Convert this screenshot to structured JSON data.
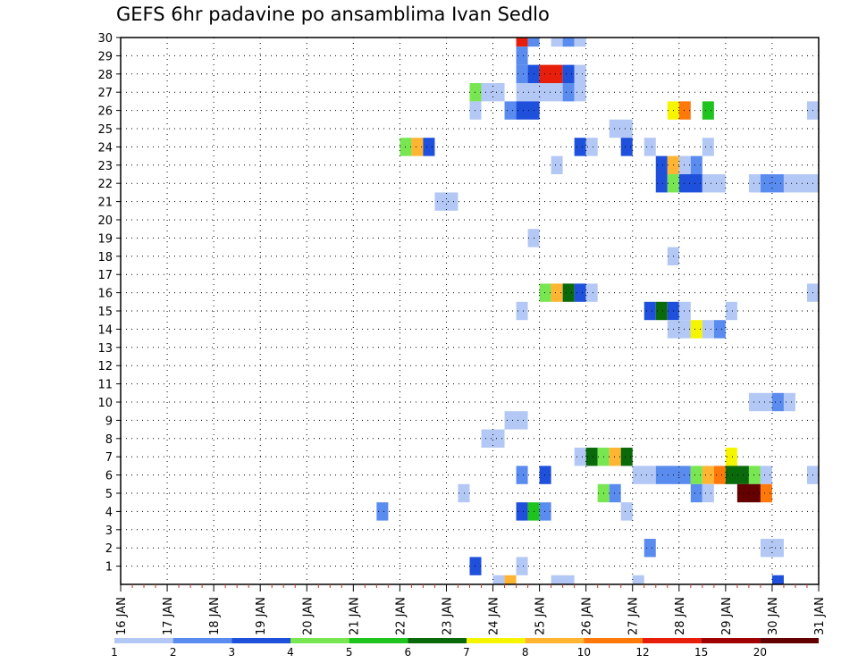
{
  "chart_data": {
    "type": "heatmap",
    "title": "GEFS 6hr padavine po ansamblima Ivan Sedlo",
    "xlabel": "",
    "ylabel": "",
    "x_tick_labels": [
      "16 JAN",
      "17 JAN",
      "18 JAN",
      "19 JAN",
      "20 JAN",
      "21 JAN",
      "22 JAN",
      "23 JAN",
      "24 JAN",
      "25 JAN",
      "26 JAN",
      "27 JAN",
      "28 JAN",
      "29 JAN",
      "30 JAN",
      "31 JAN"
    ],
    "y_tick_labels": [
      "1",
      "2",
      "3",
      "4",
      "5",
      "6",
      "7",
      "8",
      "9",
      "10",
      "11",
      "12",
      "13",
      "14",
      "15",
      "16",
      "17",
      "18",
      "19",
      "20",
      "21",
      "22",
      "23",
      "24",
      "25",
      "26",
      "27",
      "28",
      "29",
      "30"
    ],
    "xlim_days": [
      16,
      31
    ],
    "ylim_members": [
      0,
      30
    ],
    "grid": true,
    "colorbar": {
      "labels": [
        "1",
        "2",
        "3",
        "4",
        "5",
        "6",
        "7",
        "8",
        "10",
        "12",
        "15",
        "20"
      ],
      "colors": [
        "#b4c8f5",
        "#5a8cf0",
        "#1e50dc",
        "#78e650",
        "#1ec31e",
        "#0a690a",
        "#f5f500",
        "#ffb432",
        "#ff780a",
        "#e61e0a",
        "#a00000",
        "#640000"
      ]
    },
    "cells_format": [
      "member",
      "start_day",
      "end_day",
      "color_index"
    ],
    "cells": [
      [
        30,
        24.5,
        24.75,
        9
      ],
      [
        30,
        24.75,
        25.0,
        1
      ],
      [
        30,
        25.25,
        25.5,
        0
      ],
      [
        30,
        25.5,
        25.75,
        1
      ],
      [
        30,
        25.75,
        26.0,
        0
      ],
      [
        29,
        24.5,
        24.75,
        1
      ],
      [
        28,
        24.5,
        24.75,
        1
      ],
      [
        28,
        24.75,
        25.0,
        2
      ],
      [
        28,
        25.0,
        25.5,
        9
      ],
      [
        28,
        25.5,
        25.75,
        2
      ],
      [
        28,
        25.75,
        26.0,
        0
      ],
      [
        27,
        23.5,
        23.75,
        3
      ],
      [
        27,
        23.75,
        24.25,
        0
      ],
      [
        27,
        24.5,
        25.5,
        0
      ],
      [
        27,
        25.5,
        25.75,
        1
      ],
      [
        27,
        25.75,
        26.0,
        0
      ],
      [
        26,
        23.5,
        23.75,
        0
      ],
      [
        26,
        24.25,
        24.5,
        1
      ],
      [
        26,
        24.5,
        25.0,
        2
      ],
      [
        26,
        27.75,
        28.0,
        6
      ],
      [
        26,
        28.0,
        28.25,
        8
      ],
      [
        26,
        28.5,
        28.75,
        4
      ],
      [
        26,
        30.75,
        31.0,
        0
      ],
      [
        25,
        26.5,
        27.0,
        0
      ],
      [
        24,
        22.0,
        22.25,
        3
      ],
      [
        24,
        22.25,
        22.5,
        7
      ],
      [
        24,
        22.5,
        22.75,
        2
      ],
      [
        24,
        25.75,
        26.0,
        2
      ],
      [
        24,
        26.0,
        26.25,
        0
      ],
      [
        24,
        26.75,
        27.0,
        2
      ],
      [
        24,
        27.25,
        27.5,
        0
      ],
      [
        24,
        28.5,
        28.75,
        0
      ],
      [
        23,
        25.25,
        25.5,
        0
      ],
      [
        23,
        27.5,
        27.75,
        2
      ],
      [
        23,
        27.75,
        28.0,
        7
      ],
      [
        23,
        28.0,
        28.25,
        0
      ],
      [
        23,
        28.25,
        28.5,
        1
      ],
      [
        22,
        27.5,
        27.75,
        2
      ],
      [
        22,
        27.75,
        28.0,
        3
      ],
      [
        22,
        28.0,
        28.5,
        2
      ],
      [
        22,
        28.5,
        29.0,
        0
      ],
      [
        22,
        29.5,
        29.75,
        0
      ],
      [
        22,
        29.75,
        30.25,
        1
      ],
      [
        22,
        30.25,
        31.0,
        0
      ],
      [
        21,
        22.75,
        23.25,
        0
      ],
      [
        19,
        24.75,
        25.0,
        0
      ],
      [
        18,
        27.75,
        28.0,
        0
      ],
      [
        16,
        25.0,
        25.25,
        3
      ],
      [
        16,
        25.25,
        25.5,
        7
      ],
      [
        16,
        25.5,
        25.75,
        5
      ],
      [
        16,
        25.75,
        26.0,
        2
      ],
      [
        16,
        26.0,
        26.25,
        0
      ],
      [
        16,
        30.75,
        31.0,
        0
      ],
      [
        15,
        24.5,
        24.75,
        0
      ],
      [
        15,
        27.25,
        27.5,
        2
      ],
      [
        15,
        27.5,
        27.75,
        5
      ],
      [
        15,
        27.75,
        28.0,
        2
      ],
      [
        15,
        28.0,
        28.25,
        0
      ],
      [
        15,
        29.0,
        29.25,
        0
      ],
      [
        14,
        27.75,
        28.25,
        0
      ],
      [
        14,
        28.25,
        28.5,
        6
      ],
      [
        14,
        28.5,
        28.75,
        0
      ],
      [
        14,
        28.75,
        29.0,
        1
      ],
      [
        10,
        29.5,
        30.0,
        0
      ],
      [
        10,
        30.0,
        30.25,
        1
      ],
      [
        10,
        30.25,
        30.5,
        0
      ],
      [
        9,
        24.25,
        24.75,
        0
      ],
      [
        8,
        23.75,
        24.25,
        0
      ],
      [
        7,
        25.75,
        26.0,
        0
      ],
      [
        7,
        26.0,
        26.25,
        5
      ],
      [
        7,
        26.25,
        26.5,
        3
      ],
      [
        7,
        26.5,
        26.75,
        7
      ],
      [
        7,
        26.75,
        27.0,
        5
      ],
      [
        7,
        29.0,
        29.25,
        6
      ],
      [
        6,
        24.5,
        24.75,
        1
      ],
      [
        6,
        25.0,
        25.25,
        2
      ],
      [
        6,
        27.0,
        27.5,
        0
      ],
      [
        6,
        27.5,
        28.25,
        1
      ],
      [
        6,
        28.25,
        28.5,
        3
      ],
      [
        6,
        28.5,
        28.75,
        7
      ],
      [
        6,
        28.75,
        29.0,
        8
      ],
      [
        6,
        29.0,
        29.5,
        5
      ],
      [
        6,
        29.5,
        29.75,
        3
      ],
      [
        6,
        29.75,
        30.0,
        0
      ],
      [
        6,
        30.75,
        31.0,
        0
      ],
      [
        5,
        23.25,
        23.5,
        0
      ],
      [
        5,
        26.25,
        26.5,
        3
      ],
      [
        5,
        26.5,
        26.75,
        1
      ],
      [
        5,
        28.25,
        28.5,
        1
      ],
      [
        5,
        28.5,
        28.75,
        0
      ],
      [
        5,
        29.25,
        29.75,
        11
      ],
      [
        5,
        29.75,
        30.0,
        8
      ],
      [
        4,
        21.5,
        21.75,
        1
      ],
      [
        4,
        24.5,
        24.75,
        2
      ],
      [
        4,
        24.75,
        25.0,
        4
      ],
      [
        4,
        25.0,
        25.25,
        1
      ],
      [
        4,
        26.75,
        27.0,
        0
      ],
      [
        2,
        27.25,
        27.5,
        1
      ],
      [
        2,
        29.75,
        30.25,
        0
      ],
      [
        1,
        23.5,
        23.75,
        2
      ],
      [
        1,
        24.5,
        24.75,
        0
      ],
      [
        0,
        24.0,
        24.25,
        0
      ],
      [
        0,
        24.25,
        24.5,
        7
      ],
      [
        0,
        25.25,
        25.75,
        0
      ],
      [
        0,
        27.0,
        27.25,
        0
      ],
      [
        0,
        30.0,
        30.25,
        2
      ]
    ]
  }
}
